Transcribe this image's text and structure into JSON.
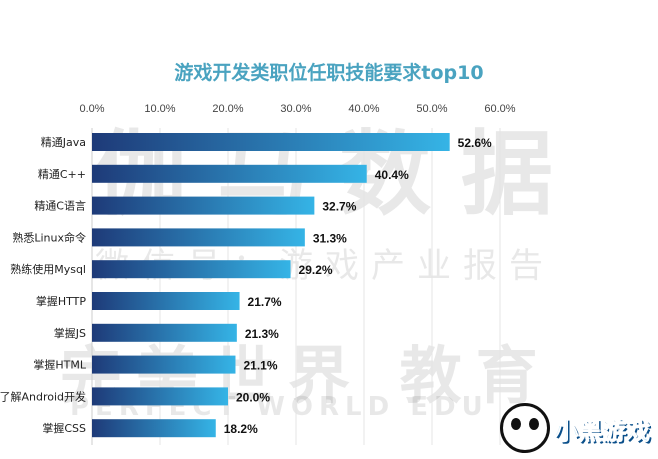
{
  "chart_data": {
    "type": "bar",
    "orientation": "horizontal",
    "title": "游戏开发类职位任职技能要求top10",
    "categories": [
      "精通Java",
      "精通C++",
      "精通C语言",
      "熟悉Linux命令",
      "熟练使用Mysql",
      "掌握HTTP",
      "掌握JS",
      "掌握HTML",
      "了解Android开发",
      "掌握CSS"
    ],
    "values": [
      52.6,
      40.4,
      32.7,
      31.3,
      29.2,
      21.7,
      21.3,
      21.1,
      20.0,
      18.2
    ],
    "value_labels": [
      "52.6%",
      "40.4%",
      "32.7%",
      "31.3%",
      "29.2%",
      "21.7%",
      "21.3%",
      "21.1%",
      "20.0%",
      "18.2%"
    ],
    "xlim": [
      0,
      60
    ],
    "x_ticks": [
      "0.0%",
      "10.0%",
      "20.0%",
      "30.0%",
      "40.0%",
      "50.0%",
      "60.0%"
    ],
    "axis_position": "top",
    "grid": true,
    "xlabel": "",
    "ylabel": "",
    "colors": {
      "bar_start": "#1e3a78",
      "bar_end": "#35b4e6",
      "title": "#4aa3c0"
    }
  },
  "watermarks": {
    "line1": "伽马数据",
    "line2": "微信号：游戏产业报告",
    "line3": "完美世界 教育",
    "line4": "PERFECT WORLD EDU",
    "logo": "小黑游戏"
  }
}
